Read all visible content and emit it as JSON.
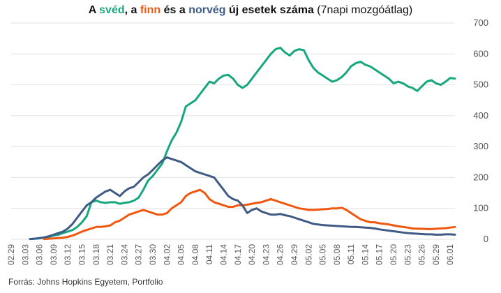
{
  "title": {
    "p1": "A ",
    "sved": "svéd",
    "p2": ", a ",
    "finn": "finn",
    "p3": " és a ",
    "norveg": "norvég",
    "p4": " új esetek száma",
    "p5": " (7napi mozgóátlag)"
  },
  "source": "Forrás: Johns Hopkins Egyetem, Portfolio",
  "colors": {
    "sweden": "#16a77e",
    "finland": "#f0570f",
    "norway": "#3f5b85",
    "grid": "#e2e2e2",
    "title_text": "#111111"
  },
  "chart_data": {
    "type": "line",
    "title": "A svéd, a finn és a norvég új esetek száma (7napi mozgóátlag)",
    "xlabel": "",
    "ylabel": "",
    "ylim": [
      0,
      700
    ],
    "yticks": [
      0,
      100,
      200,
      300,
      400,
      500,
      600,
      700
    ],
    "y_axis_position": "right",
    "grid": true,
    "legend": "none (series named by colored words in title)",
    "x": [
      "02.29",
      "03.01",
      "03.02",
      "03.03",
      "03.04",
      "03.05",
      "03.06",
      "03.07",
      "03.08",
      "03.09",
      "03.10",
      "03.11",
      "03.12",
      "03.13",
      "03.14",
      "03.15",
      "03.16",
      "03.17",
      "03.18",
      "03.19",
      "03.20",
      "03.21",
      "03.22",
      "03.23",
      "03.24",
      "03.25",
      "03.26",
      "03.27",
      "03.28",
      "03.29",
      "03.30",
      "03.31",
      "04.01",
      "04.02",
      "04.03",
      "04.04",
      "04.05",
      "04.06",
      "04.07",
      "04.08",
      "04.09",
      "04.10",
      "04.11",
      "04.12",
      "04.13",
      "04.14",
      "04.15",
      "04.16",
      "04.17",
      "04.18",
      "04.19",
      "04.20",
      "04.21",
      "04.22",
      "04.23",
      "04.24",
      "04.25",
      "04.26",
      "04.27",
      "04.28",
      "04.29",
      "04.30",
      "05.01",
      "05.02",
      "05.03",
      "05.04",
      "05.05",
      "05.06",
      "05.07",
      "05.08",
      "05.09",
      "05.10",
      "05.11",
      "05.12",
      "05.13",
      "05.14",
      "05.15",
      "05.16",
      "05.17",
      "05.18",
      "05.19",
      "05.20",
      "05.21",
      "05.22",
      "05.23",
      "05.24",
      "05.25",
      "05.26",
      "05.27",
      "05.28",
      "05.29",
      "05.30",
      "05.31",
      "06.01",
      "06.02"
    ],
    "xtick_labels": [
      "02.29",
      "03.03",
      "03.06",
      "03.09",
      "03.12",
      "03.15",
      "03.18",
      "03.21",
      "03.24",
      "03.27",
      "03.30",
      "04.02",
      "04.05",
      "04.08",
      "04.11",
      "04.14",
      "04.17",
      "04.20",
      "04.23",
      "04.26",
      "04.29",
      "05.02",
      "05.05",
      "05.08",
      "05.11",
      "05.14",
      "05.17",
      "05.20",
      "05.23",
      "05.26",
      "05.29",
      "06.01"
    ],
    "series": [
      {
        "name": "svéd",
        "color": "#16a77e",
        "values": [
          null,
          null,
          null,
          null,
          1,
          2,
          3,
          5,
          8,
          12,
          15,
          20,
          25,
          30,
          40,
          55,
          75,
          120,
          125,
          120,
          118,
          120,
          120,
          115,
          118,
          120,
          125,
          135,
          160,
          190,
          205,
          225,
          245,
          285,
          320,
          345,
          380,
          430,
          440,
          450,
          470,
          490,
          510,
          505,
          520,
          530,
          532,
          520,
          500,
          490,
          500,
          520,
          540,
          560,
          580,
          600,
          615,
          620,
          605,
          595,
          610,
          615,
          612,
          580,
          555,
          540,
          530,
          520,
          510,
          515,
          525,
          540,
          560,
          570,
          575,
          565,
          560,
          550,
          540,
          530,
          520,
          505,
          510,
          505,
          495,
          490,
          480,
          495,
          510,
          515,
          505,
          500,
          510,
          522,
          520
        ]
      },
      {
        "name": "finn",
        "color": "#f0570f",
        "values": [
          null,
          null,
          null,
          null,
          null,
          null,
          null,
          1,
          2,
          3,
          4,
          5,
          8,
          12,
          18,
          25,
          30,
          35,
          40,
          40,
          42,
          45,
          55,
          60,
          70,
          80,
          85,
          90,
          95,
          90,
          85,
          80,
          80,
          85,
          100,
          110,
          120,
          140,
          150,
          155,
          160,
          150,
          130,
          120,
          115,
          110,
          105,
          105,
          110,
          110,
          112,
          115,
          118,
          120,
          125,
          130,
          125,
          120,
          115,
          110,
          105,
          100,
          98,
          95,
          95,
          96,
          97,
          98,
          100,
          100,
          102,
          95,
          85,
          75,
          65,
          60,
          55,
          55,
          52,
          50,
          48,
          45,
          42,
          40,
          38,
          35,
          34,
          34,
          33,
          33,
          34,
          35,
          36,
          38,
          40
        ]
      },
      {
        "name": "norvég",
        "color": "#3f5b85",
        "values": [
          null,
          null,
          null,
          null,
          1,
          2,
          4,
          6,
          10,
          15,
          20,
          25,
          35,
          50,
          70,
          90,
          110,
          120,
          135,
          145,
          155,
          160,
          150,
          140,
          155,
          165,
          170,
          185,
          200,
          210,
          225,
          240,
          255,
          265,
          260,
          255,
          250,
          240,
          230,
          220,
          215,
          210,
          205,
          200,
          180,
          160,
          140,
          130,
          125,
          110,
          85,
          95,
          100,
          90,
          85,
          80,
          80,
          82,
          78,
          75,
          70,
          65,
          60,
          55,
          50,
          48,
          46,
          45,
          44,
          43,
          42,
          41,
          40,
          40,
          39,
          38,
          37,
          35,
          32,
          30,
          28,
          26,
          24,
          22,
          20,
          19,
          18,
          17,
          16,
          16,
          15,
          15,
          16,
          16,
          15
        ]
      }
    ]
  }
}
